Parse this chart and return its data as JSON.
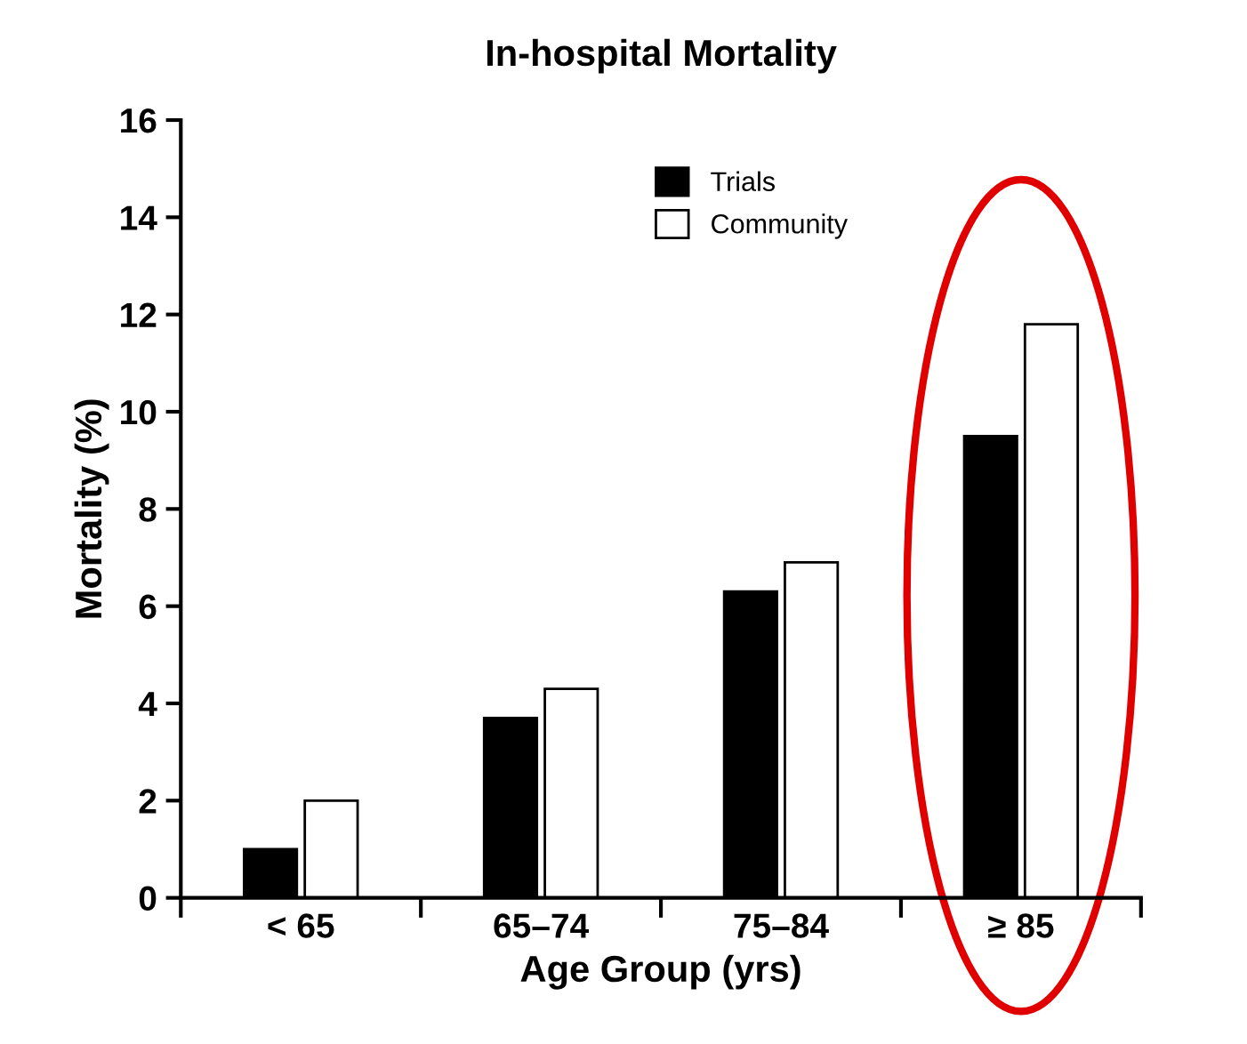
{
  "chart_data": {
    "type": "bar",
    "title": "In-hospital Mortality",
    "xlabel": "Age Group (yrs)",
    "ylabel": "Mortality (%)",
    "categories": [
      "< 65",
      "65–74",
      "75–84",
      "≥ 85"
    ],
    "series": [
      {
        "name": "Trials",
        "color": "#000000",
        "values": [
          1.0,
          3.7,
          6.3,
          9.5
        ]
      },
      {
        "name": "Community",
        "color": "#ffffff",
        "values": [
          2.0,
          4.3,
          6.9,
          11.8
        ]
      }
    ],
    "ylim": [
      0,
      16
    ],
    "yticks": [
      0,
      2,
      4,
      6,
      8,
      10,
      12,
      14,
      16
    ],
    "grid": false,
    "legend": "top right"
  }
}
